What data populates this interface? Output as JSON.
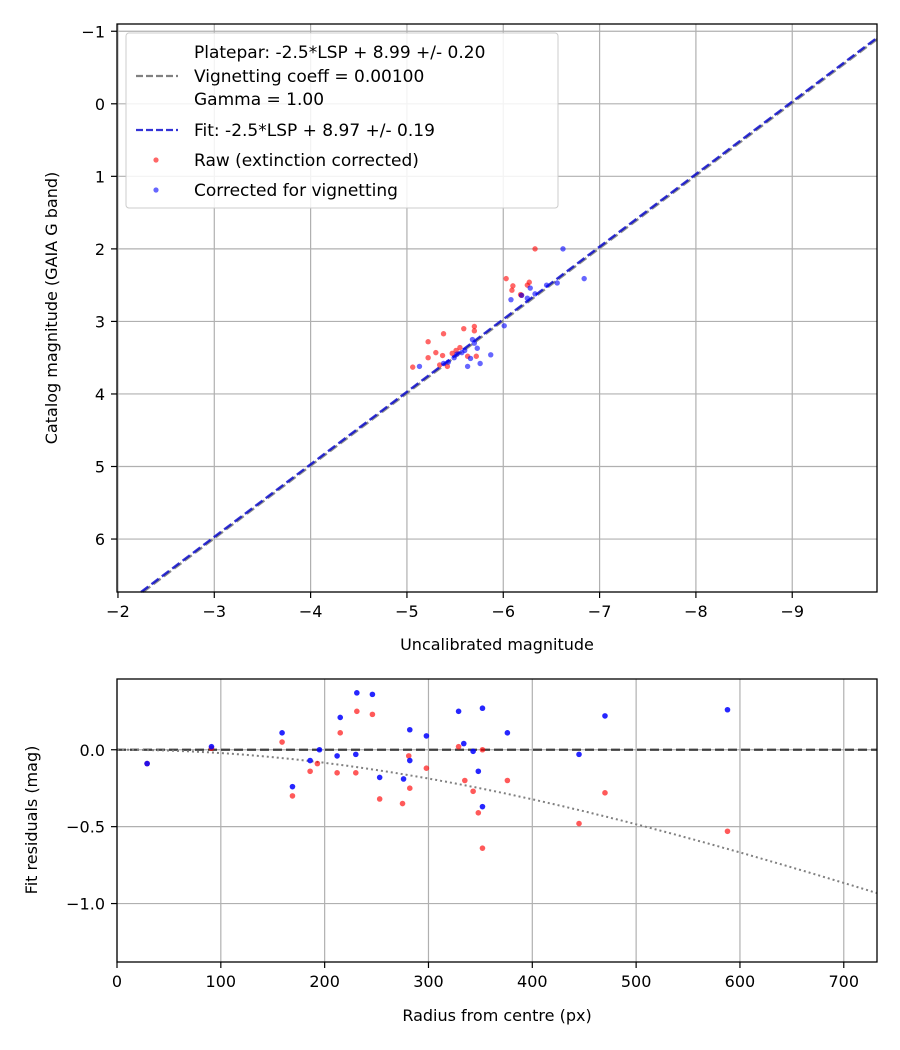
{
  "colors": {
    "raw": "#ff0000",
    "vig": "#0000ff",
    "fit": "#0000cc",
    "platepar": "#808080",
    "zero": "#404040",
    "grid": "#b0b0b0"
  },
  "chart_data": [
    {
      "type": "scatter",
      "panel": "top",
      "xlabel": "Uncalibrated magnitude",
      "ylabel": "Catalog magnitude (GAIA G band)",
      "xlim": [
        -1.99,
        -9.88
      ],
      "ylim": [
        6.73,
        -1.1
      ],
      "xticks": [
        -2,
        -3,
        -4,
        -5,
        -6,
        -7,
        -8,
        -9
      ],
      "xtick_labels": [
        "−2",
        "−3",
        "−4",
        "−5",
        "−6",
        "−7",
        "−8",
        "−9"
      ],
      "yticks": [
        -1,
        0,
        1,
        2,
        3,
        4,
        5,
        6
      ],
      "ytick_labels": [
        "−1",
        "0",
        "1",
        "2",
        "3",
        "4",
        "5",
        "6"
      ],
      "grid": true,
      "legend": {
        "placement": "top-left",
        "entries": [
          {
            "label": "Platepar: -2.5*LSP + 8.99 +/- 0.20",
            "style": "dashed-gray"
          },
          {
            "label": "Vignetting coeff = 0.00100",
            "style": "none"
          },
          {
            "label": "Gamma = 1.00",
            "style": "none"
          },
          {
            "label": "Fit: -2.5*LSP + 8.97 +/- 0.19",
            "style": "dashed-blue"
          },
          {
            "label": "Raw (extinction corrected)",
            "style": "red-dot"
          },
          {
            "label": "Corrected for vignetting",
            "style": "blue-dot"
          }
        ]
      },
      "lines": [
        {
          "name": "Platepar",
          "slope": 1,
          "intercept": 8.99
        },
        {
          "name": "Fit",
          "slope": 1,
          "intercept": 8.97
        }
      ],
      "series": [
        {
          "name": "Raw (extinction corrected)",
          "points": [
            [
              -5.06,
              3.63
            ],
            [
              -5.22,
              3.28
            ],
            [
              -5.22,
              3.5
            ],
            [
              -5.3,
              3.43
            ],
            [
              -5.34,
              3.6
            ],
            [
              -5.37,
              3.47
            ],
            [
              -5.38,
              3.17
            ],
            [
              -5.42,
              3.62
            ],
            [
              -5.47,
              3.44
            ],
            [
              -5.51,
              3.4
            ],
            [
              -5.55,
              3.36
            ],
            [
              -5.59,
              3.1
            ],
            [
              -5.63,
              3.48
            ],
            [
              -5.7,
              3.13
            ],
            [
              -5.7,
              3.07
            ],
            [
              -5.72,
              3.48
            ],
            [
              -6.03,
              2.41
            ],
            [
              -6.09,
              2.57
            ],
            [
              -6.1,
              2.51
            ],
            [
              -6.18,
              2.63
            ],
            [
              -6.19,
              2.64
            ],
            [
              -6.25,
              2.5
            ],
            [
              -6.27,
              2.46
            ],
            [
              -6.33,
              2.0
            ]
          ]
        },
        {
          "name": "Corrected for vignetting",
          "points": [
            [
              -5.13,
              3.62
            ],
            [
              -5.38,
              3.58
            ],
            [
              -5.43,
              3.56
            ],
            [
              -5.49,
              3.5
            ],
            [
              -5.52,
              3.45
            ],
            [
              -5.57,
              3.43
            ],
            [
              -5.6,
              3.4
            ],
            [
              -5.63,
              3.62
            ],
            [
              -5.66,
              3.51
            ],
            [
              -5.68,
              3.25
            ],
            [
              -5.7,
              3.3
            ],
            [
              -5.73,
              3.37
            ],
            [
              -5.76,
              3.58
            ],
            [
              -5.87,
              3.46
            ],
            [
              -6.01,
              3.06
            ],
            [
              -6.08,
              2.7
            ],
            [
              -6.19,
              2.64
            ],
            [
              -6.25,
              2.68
            ],
            [
              -6.28,
              2.54
            ],
            [
              -6.33,
              2.62
            ],
            [
              -6.45,
              2.5
            ],
            [
              -6.56,
              2.47
            ],
            [
              -6.62,
              2.0
            ],
            [
              -6.84,
              2.41
            ]
          ]
        }
      ]
    },
    {
      "type": "scatter",
      "panel": "bottom",
      "xlabel": "Radius from centre (px)",
      "ylabel": "Fit residuals (mag)",
      "xlim": [
        0,
        732
      ],
      "ylim": [
        -1.38,
        0.46
      ],
      "xticks": [
        0,
        100,
        200,
        300,
        400,
        500,
        600,
        700
      ],
      "xtick_labels": [
        "0",
        "100",
        "200",
        "300",
        "400",
        "500",
        "600",
        "700"
      ],
      "yticks": [
        0.0,
        -0.5,
        -1.0
      ],
      "ytick_labels": [
        "0.0",
        "−0.5",
        "−1.0"
      ],
      "grid": true,
      "reference_lines": [
        {
          "name": "zero",
          "value": 0.0,
          "style": "dashed"
        },
        {
          "name": "vignetting",
          "model": "-2.5*log10(cos(atan(0.00100*r))^4)",
          "style": "dotted"
        }
      ],
      "series": [
        {
          "name": "Raw (extinction corrected)",
          "points": [
            [
              29,
              -0.09
            ],
            [
              91,
              0.01
            ],
            [
              159,
              0.05
            ],
            [
              169,
              -0.3
            ],
            [
              186,
              -0.14
            ],
            [
              193,
              -0.09
            ],
            [
              212,
              -0.15
            ],
            [
              215,
              0.11
            ],
            [
              230,
              -0.15
            ],
            [
              231,
              0.25
            ],
            [
              246,
              0.23
            ],
            [
              253,
              -0.32
            ],
            [
              275,
              -0.35
            ],
            [
              281,
              -0.04
            ],
            [
              282,
              -0.25
            ],
            [
              298,
              -0.12
            ],
            [
              329,
              0.02
            ],
            [
              335,
              -0.2
            ],
            [
              343,
              -0.27
            ],
            [
              348,
              -0.41
            ],
            [
              352,
              0.0
            ],
            [
              352,
              -0.64
            ],
            [
              376,
              -0.2
            ],
            [
              445,
              -0.48
            ],
            [
              470,
              -0.28
            ],
            [
              588,
              -0.53
            ]
          ]
        },
        {
          "name": "Corrected for vignetting",
          "points": [
            [
              29,
              -0.09
            ],
            [
              91,
              0.02
            ],
            [
              159,
              0.11
            ],
            [
              169,
              -0.24
            ],
            [
              186,
              -0.07
            ],
            [
              195,
              0.0
            ],
            [
              212,
              -0.04
            ],
            [
              215,
              0.21
            ],
            [
              230,
              -0.03
            ],
            [
              231,
              0.37
            ],
            [
              246,
              0.36
            ],
            [
              253,
              -0.18
            ],
            [
              276,
              -0.19
            ],
            [
              282,
              0.13
            ],
            [
              282,
              -0.07
            ],
            [
              298,
              0.09
            ],
            [
              329,
              0.25
            ],
            [
              334,
              0.04
            ],
            [
              343,
              -0.01
            ],
            [
              348,
              -0.14
            ],
            [
              352,
              0.27
            ],
            [
              352,
              -0.37
            ],
            [
              376,
              0.11
            ],
            [
              445,
              -0.03
            ],
            [
              470,
              0.22
            ],
            [
              588,
              0.26
            ]
          ]
        }
      ]
    }
  ]
}
